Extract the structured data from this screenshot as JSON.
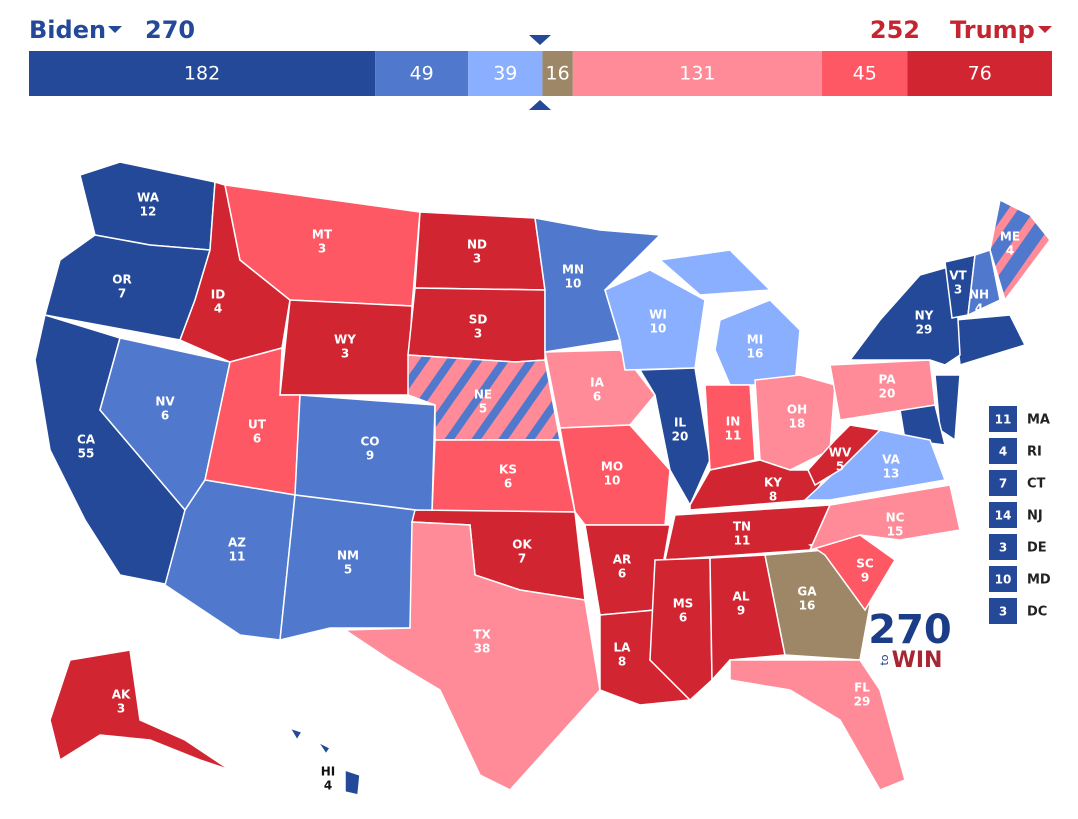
{
  "header": {
    "left": {
      "name": "Biden",
      "total": 270
    },
    "right": {
      "name": "Trump",
      "total": 252
    }
  },
  "bar": {
    "segments": [
      {
        "value": 182,
        "color": "#244999"
      },
      {
        "value": 49,
        "color": "#5078cc"
      },
      {
        "value": 39,
        "color": "#8aafff"
      },
      {
        "value": 16,
        "color": "#9e8767"
      },
      {
        "value": 131,
        "color": "#ff8b98"
      },
      {
        "value": 45,
        "color": "#ff5865"
      },
      {
        "value": 76,
        "color": "#d22532"
      }
    ]
  },
  "map": {
    "states": [
      {
        "abbr": "WA",
        "votes": 12,
        "color": "#244999"
      },
      {
        "abbr": "OR",
        "votes": 7,
        "color": "#244999"
      },
      {
        "abbr": "CA",
        "votes": 55,
        "color": "#244999"
      },
      {
        "abbr": "NV",
        "votes": 6,
        "color": "#5078cc"
      },
      {
        "abbr": "ID",
        "votes": 4,
        "color": "#d22532"
      },
      {
        "abbr": "MT",
        "votes": 3,
        "color": "#ff5865"
      },
      {
        "abbr": "WY",
        "votes": 3,
        "color": "#d22532"
      },
      {
        "abbr": "UT",
        "votes": 6,
        "color": "#ff5865"
      },
      {
        "abbr": "AZ",
        "votes": 11,
        "color": "#5078cc"
      },
      {
        "abbr": "CO",
        "votes": 9,
        "color": "#5078cc"
      },
      {
        "abbr": "NM",
        "votes": 5,
        "color": "#5078cc"
      },
      {
        "abbr": "ND",
        "votes": 3,
        "color": "#d22532"
      },
      {
        "abbr": "SD",
        "votes": 3,
        "color": "#d22532"
      },
      {
        "abbr": "NE",
        "votes": 5,
        "color": "#ff8b98",
        "stripe_color": "#5078cc"
      },
      {
        "abbr": "KS",
        "votes": 6,
        "color": "#ff5865"
      },
      {
        "abbr": "OK",
        "votes": 7,
        "color": "#d22532"
      },
      {
        "abbr": "TX",
        "votes": 38,
        "color": "#ff8b98"
      },
      {
        "abbr": "MN",
        "votes": 10,
        "color": "#5078cc"
      },
      {
        "abbr": "IA",
        "votes": 6,
        "color": "#ff8b98"
      },
      {
        "abbr": "MO",
        "votes": 10,
        "color": "#ff5865"
      },
      {
        "abbr": "AR",
        "votes": 6,
        "color": "#d22532"
      },
      {
        "abbr": "LA",
        "votes": 8,
        "color": "#d22532"
      },
      {
        "abbr": "WI",
        "votes": 10,
        "color": "#8aafff"
      },
      {
        "abbr": "IL",
        "votes": 20,
        "color": "#244999"
      },
      {
        "abbr": "MI",
        "votes": 16,
        "color": "#8aafff"
      },
      {
        "abbr": "IN",
        "votes": 11,
        "color": "#ff5865"
      },
      {
        "abbr": "OH",
        "votes": 18,
        "color": "#ff8b98"
      },
      {
        "abbr": "KY",
        "votes": 8,
        "color": "#d22532"
      },
      {
        "abbr": "TN",
        "votes": 11,
        "color": "#d22532"
      },
      {
        "abbr": "MS",
        "votes": 6,
        "color": "#d22532"
      },
      {
        "abbr": "AL",
        "votes": 9,
        "color": "#d22532"
      },
      {
        "abbr": "GA",
        "votes": 16,
        "color": "#9e8767"
      },
      {
        "abbr": "FL",
        "votes": 29,
        "color": "#ff8b98"
      },
      {
        "abbr": "SC",
        "votes": 9,
        "color": "#ff5865"
      },
      {
        "abbr": "NC",
        "votes": 15,
        "color": "#ff8b98"
      },
      {
        "abbr": "VA",
        "votes": 13,
        "color": "#8aafff"
      },
      {
        "abbr": "WV",
        "votes": 5,
        "color": "#d22532"
      },
      {
        "abbr": "PA",
        "votes": 20,
        "color": "#ff8b98"
      },
      {
        "abbr": "NY",
        "votes": 29,
        "color": "#244999"
      },
      {
        "abbr": "VT",
        "votes": 3,
        "color": "#244999"
      },
      {
        "abbr": "NH",
        "votes": 4,
        "color": "#5078cc"
      },
      {
        "abbr": "ME",
        "votes": 4,
        "color": "#5078cc",
        "stripe_color": "#ff8b98"
      },
      {
        "abbr": "AK",
        "votes": 3,
        "color": "#d22532"
      },
      {
        "abbr": "HI",
        "votes": 4,
        "color": "#244999"
      }
    ]
  },
  "small_states": [
    {
      "votes": 11,
      "abbr": "MA",
      "color": "#244999"
    },
    {
      "votes": 4,
      "abbr": "RI",
      "color": "#244999"
    },
    {
      "votes": 7,
      "abbr": "CT",
      "color": "#244999"
    },
    {
      "votes": 14,
      "abbr": "NJ",
      "color": "#244999"
    },
    {
      "votes": 3,
      "abbr": "DE",
      "color": "#244999"
    },
    {
      "votes": 10,
      "abbr": "MD",
      "color": "#244999"
    },
    {
      "votes": 3,
      "abbr": "DC",
      "color": "#244999"
    }
  ],
  "logo": {
    "number": "270",
    "small": "to",
    "word": "WIN"
  }
}
